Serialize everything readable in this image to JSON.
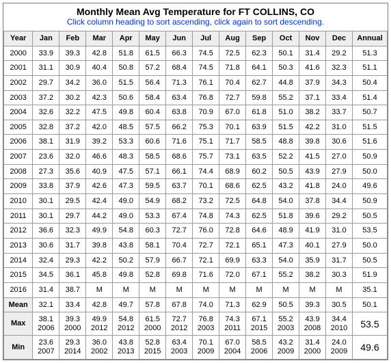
{
  "header": {
    "title": "Monthly Mean Avg Temperature for FT COLLINS, CO",
    "subtitle": "Click column heading to sort ascending, click again to sort descending."
  },
  "columns": [
    "Year",
    "Jan",
    "Feb",
    "Mar",
    "Apr",
    "May",
    "Jun",
    "Jul",
    "Aug",
    "Sep",
    "Oct",
    "Nov",
    "Dec",
    "Annual"
  ],
  "rows": [
    {
      "year": "2000",
      "vals": [
        "33.9",
        "39.3",
        "42.8",
        "51.8",
        "61.5",
        "66.3",
        "74.5",
        "72.5",
        "62.3",
        "50.1",
        "31.4",
        "29.2",
        "51.3"
      ]
    },
    {
      "year": "2001",
      "vals": [
        "31.1",
        "30.9",
        "40.4",
        "50.8",
        "57.2",
        "68.4",
        "74.5",
        "71.8",
        "64.1",
        "50.3",
        "41.6",
        "32.3",
        "51.1"
      ]
    },
    {
      "year": "2002",
      "vals": [
        "29.7",
        "34.2",
        "36.0",
        "51.5",
        "56.4",
        "71.3",
        "76.1",
        "70.4",
        "62.7",
        "44.8",
        "37.9",
        "34.3",
        "50.4"
      ]
    },
    {
      "year": "2003",
      "vals": [
        "37.2",
        "30.2",
        "42.3",
        "50.6",
        "58.4",
        "63.4",
        "76.8",
        "72.7",
        "59.8",
        "55.2",
        "37.1",
        "33.4",
        "51.4"
      ]
    },
    {
      "year": "2004",
      "vals": [
        "32.6",
        "32.2",
        "47.5",
        "49.8",
        "60.4",
        "63.8",
        "70.9",
        "67.0",
        "61.8",
        "51.0",
        "38.2",
        "33.7",
        "50.7"
      ]
    },
    {
      "year": "2005",
      "vals": [
        "32.8",
        "37.2",
        "42.0",
        "48.5",
        "57.5",
        "66.2",
        "75.3",
        "70.1",
        "63.9",
        "51.5",
        "42.2",
        "31.0",
        "51.5"
      ]
    },
    {
      "year": "2006",
      "vals": [
        "38.1",
        "31.9",
        "39.2",
        "53.3",
        "60.6",
        "71.6",
        "75.1",
        "71.7",
        "58.5",
        "48.8",
        "39.8",
        "30.6",
        "51.6"
      ]
    },
    {
      "year": "2007",
      "vals": [
        "23.6",
        "32.0",
        "46.6",
        "48.3",
        "58.5",
        "68.6",
        "75.7",
        "73.1",
        "63.5",
        "52.2",
        "41.5",
        "27.0",
        "50.9"
      ]
    },
    {
      "year": "2008",
      "vals": [
        "27.3",
        "35.6",
        "40.9",
        "47.5",
        "57.1",
        "66.1",
        "74.4",
        "68.9",
        "60.2",
        "50.5",
        "43.9",
        "27.9",
        "50.0"
      ]
    },
    {
      "year": "2009",
      "vals": [
        "33.8",
        "37.9",
        "42.6",
        "47.3",
        "59.5",
        "63.7",
        "70.1",
        "68.6",
        "62.5",
        "43.2",
        "41.8",
        "24.0",
        "49.6"
      ]
    },
    {
      "year": "2010",
      "vals": [
        "30.1",
        "29.5",
        "42.4",
        "49.0",
        "54.9",
        "68.2",
        "73.2",
        "72.5",
        "64.8",
        "54.0",
        "37.8",
        "34.4",
        "50.9"
      ]
    },
    {
      "year": "2011",
      "vals": [
        "30.1",
        "29.7",
        "44.2",
        "49.0",
        "53.3",
        "67.4",
        "74.8",
        "74.3",
        "62.5",
        "51.8",
        "39.6",
        "29.2",
        "50.5"
      ]
    },
    {
      "year": "2012",
      "vals": [
        "36.6",
        "32.3",
        "49.9",
        "54.8",
        "60.3",
        "72.7",
        "76.0",
        "72.8",
        "64.6",
        "48.9",
        "41.9",
        "31.0",
        "53.5"
      ]
    },
    {
      "year": "2013",
      "vals": [
        "30.6",
        "31.7",
        "39.8",
        "43.8",
        "58.1",
        "70.4",
        "72.7",
        "72.1",
        "65.1",
        "47.3",
        "40.1",
        "27.9",
        "50.0"
      ]
    },
    {
      "year": "2014",
      "vals": [
        "32.4",
        "29.3",
        "42.2",
        "50.2",
        "57.9",
        "66.7",
        "72.1",
        "69.9",
        "63.3",
        "54.0",
        "35.9",
        "31.7",
        "50.5"
      ]
    },
    {
      "year": "2015",
      "vals": [
        "34.5",
        "36.1",
        "45.8",
        "49.8",
        "52.8",
        "69.8",
        "71.6",
        "72.0",
        "67.1",
        "55.2",
        "38.2",
        "30.3",
        "51.9"
      ]
    },
    {
      "year": "2016",
      "vals": [
        "31.4",
        "38.7",
        "M",
        "M",
        "M",
        "M",
        "M",
        "M",
        "M",
        "M",
        "M",
        "M",
        "35.1"
      ]
    }
  ],
  "summary": {
    "mean": {
      "label": "Mean",
      "vals": [
        "32.1",
        "33.4",
        "42.8",
        "49.7",
        "57.8",
        "67.8",
        "74.0",
        "71.3",
        "62.9",
        "50.5",
        "39.3",
        "30.5",
        "50.1"
      ]
    },
    "max": {
      "label": "Max",
      "cells": [
        {
          "v": "38.1",
          "y": "2006"
        },
        {
          "v": "39.3",
          "y": "2000"
        },
        {
          "v": "49.9",
          "y": "2012"
        },
        {
          "v": "54.8",
          "y": "2012"
        },
        {
          "v": "61.5",
          "y": "2000"
        },
        {
          "v": "72.7",
          "y": "2012"
        },
        {
          "v": "76.8",
          "y": "2003"
        },
        {
          "v": "74.3",
          "y": "2011"
        },
        {
          "v": "67.1",
          "y": "2015"
        },
        {
          "v": "55.2",
          "y": "2003"
        },
        {
          "v": "43.9",
          "y": "2008"
        },
        {
          "v": "34.4",
          "y": "2010"
        }
      ],
      "annual": "53.5"
    },
    "min": {
      "label": "Min",
      "cells": [
        {
          "v": "23.6",
          "y": "2007"
        },
        {
          "v": "29.3",
          "y": "2014"
        },
        {
          "v": "36.0",
          "y": "2002"
        },
        {
          "v": "43.8",
          "y": "2013"
        },
        {
          "v": "52.8",
          "y": "2015"
        },
        {
          "v": "63.4",
          "y": "2003"
        },
        {
          "v": "70.1",
          "y": "2009"
        },
        {
          "v": "67.0",
          "y": "2004"
        },
        {
          "v": "58.5",
          "y": "2006"
        },
        {
          "v": "43.2",
          "y": "2009"
        },
        {
          "v": "31.4",
          "y": "2000"
        },
        {
          "v": "24.0",
          "y": "2009"
        }
      ],
      "annual": "49.6"
    }
  },
  "style": {
    "header_bg": "#eeeeee",
    "border_color": "#9a9a9a",
    "subtitle_color": "#0033cc",
    "font_family": "Arial",
    "base_font_size": 12,
    "cell_font_size": 11
  }
}
